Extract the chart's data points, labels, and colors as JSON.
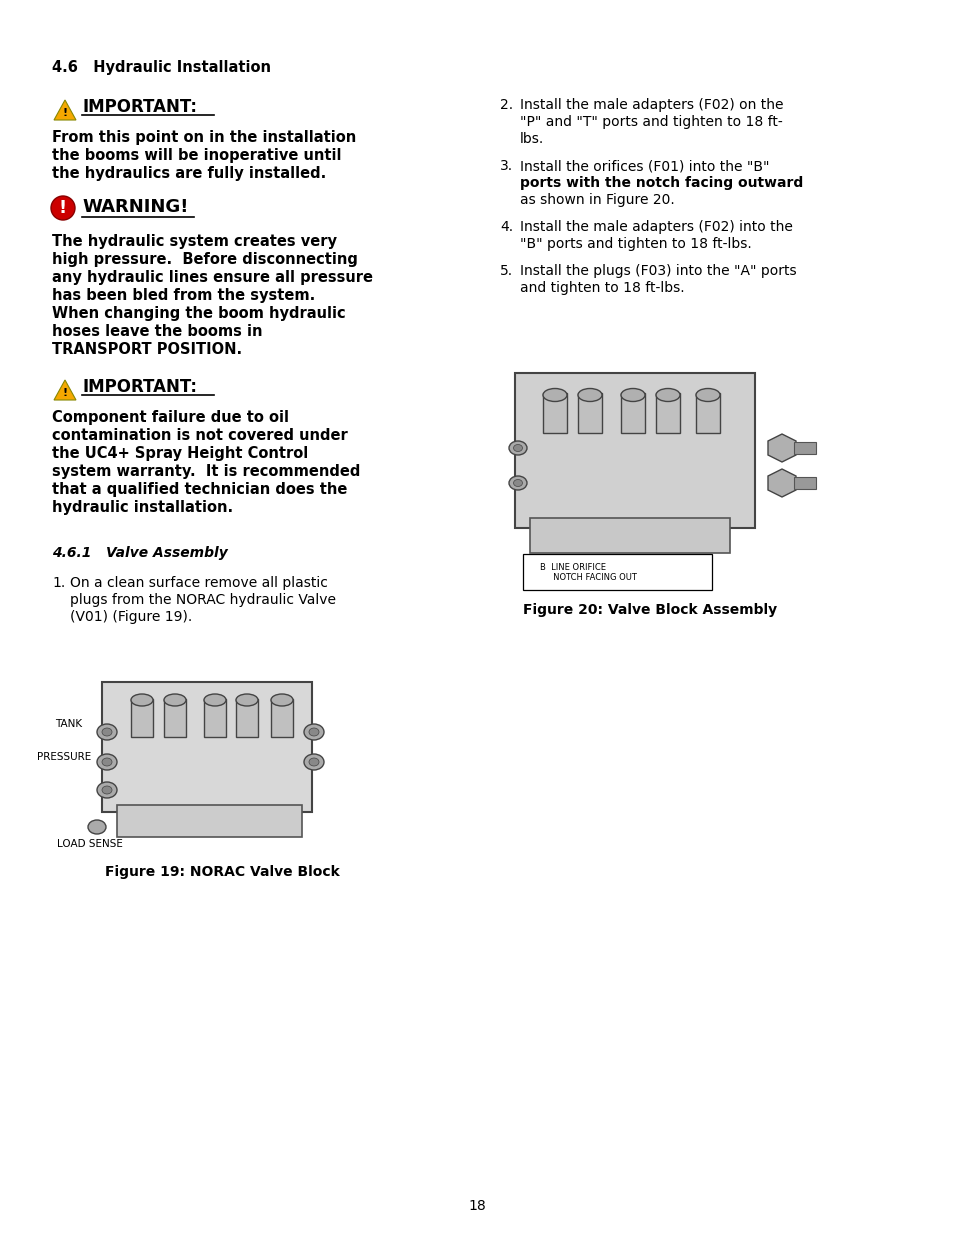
{
  "page_num": "18",
  "bg_color": "#ffffff",
  "text_color": "#000000",
  "section_heading": "4.6   Hydraulic Installation",
  "important1_text": "IMPORTANT:",
  "warning_text": "WARNING!",
  "important2_text": "IMPORTANT:",
  "subsection": "4.6.1   Valve Assembly",
  "fig19_caption": "Figure 19: NORAC Valve Block",
  "fig20_caption": "Figure 20: Valve Block Assembly",
  "warning_color": "#cc0000",
  "triangle_color": "#f5a800",
  "important1_lines": [
    "From this point on in the installation",
    "the booms will be inoperative until",
    "the hydraulics are fully installed."
  ],
  "warning_lines": [
    "The hydraulic system creates very",
    "high pressure.  Before disconnecting",
    "any hydraulic lines ensure all pressure",
    "has been bled from the system.",
    "When changing the boom hydraulic",
    "hoses leave the booms in",
    "TRANSPORT POSITION."
  ],
  "important2_lines": [
    "Component failure due to oil",
    "contamination is not covered under",
    "the UC4+ Spray Height Control",
    "system warranty.  It is recommended",
    "that a qualified technician does the",
    "hydraulic installation."
  ],
  "step1_lines": [
    "On a clean surface remove all plastic",
    "plugs from the NORAC hydraulic Valve",
    "(V01) (Figure 19)."
  ],
  "step2_lines": [
    "Install the male adapters (F02) on the",
    "\"P\" and \"T\" ports and tighten to 18 ft-",
    "lbs."
  ],
  "step3_line1": "Install the orifices (F01) into the \"B\"",
  "step3_line2": "ports with the notch facing outward",
  "step3_line3": "as shown in Figure 20.",
  "step4_lines": [
    "Install the male adapters (F02) into the",
    "\"B\" ports and tighten to 18 ft-lbs."
  ],
  "step5_lines": [
    "Install the plugs (F03) into the \"A\" ports",
    "and tighten to 18 ft-lbs."
  ]
}
